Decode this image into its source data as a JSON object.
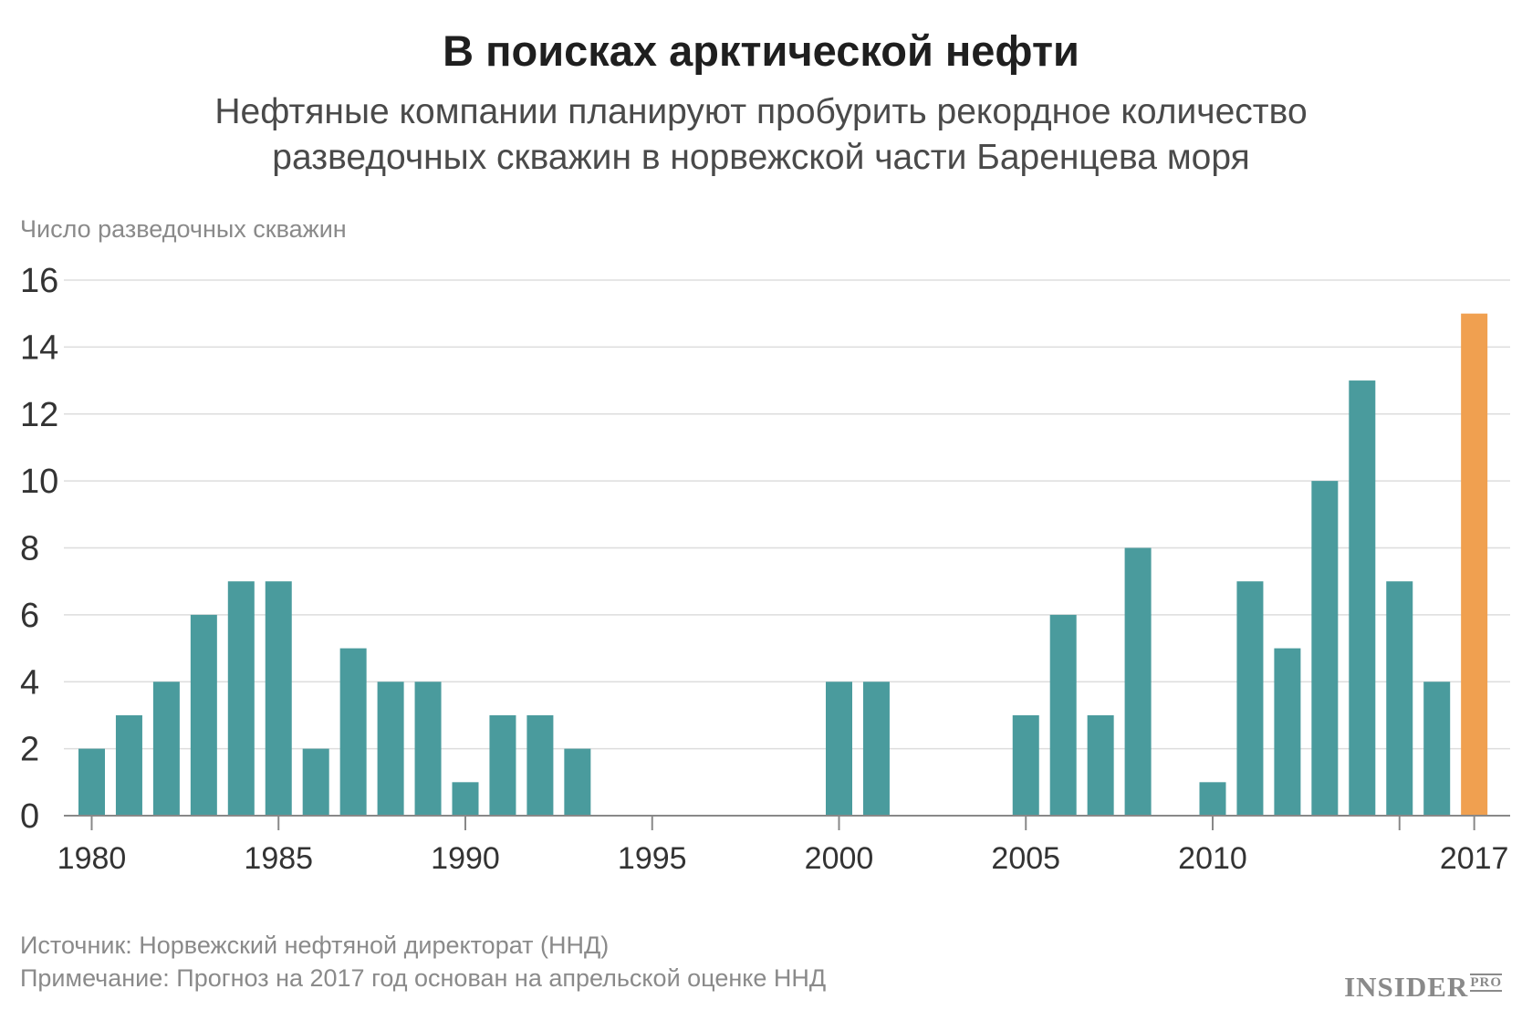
{
  "title": "В поисках арктической нефти",
  "subtitle_line1": "Нефтяные компании планируют пробурить рекордное количество",
  "subtitle_line2": "разведочных скважин в норвежской части Баренцева моря",
  "source": "Источник: Норвежский нефтяной директорат (ННД)",
  "note": "Примечание: Прогноз на 2017 год основан на апрельской оценке ННД",
  "logo": "INSIDER",
  "logo_suffix": "PRO",
  "colors": {
    "bar": "#4a9b9d",
    "highlight": "#f0a050",
    "grid": "#dddddd",
    "axis": "#888888"
  },
  "chart_data": {
    "type": "bar",
    "ylabel": "Число разведочных скважин",
    "xlabel": "",
    "ylim": [
      0,
      16
    ],
    "y_ticks": [
      "0",
      "2",
      "4",
      "6",
      "8",
      "10",
      "12",
      "14",
      "16"
    ],
    "x_ticks": [
      "1980",
      "1985",
      "1990",
      "1995",
      "2000",
      "2005",
      "2010",
      "2017"
    ],
    "grid": true,
    "categories": [
      1980,
      1981,
      1982,
      1983,
      1984,
      1985,
      1986,
      1987,
      1988,
      1989,
      1990,
      1991,
      1992,
      1993,
      1994,
      1995,
      1996,
      1997,
      1998,
      1999,
      2000,
      2001,
      2002,
      2003,
      2004,
      2005,
      2006,
      2007,
      2008,
      2009,
      2010,
      2011,
      2012,
      2013,
      2014,
      2015,
      2016,
      2017
    ],
    "values": [
      2,
      3,
      4,
      6,
      7,
      7,
      2,
      5,
      4,
      4,
      1,
      3,
      3,
      2,
      0,
      0,
      0,
      0,
      0,
      0,
      4,
      4,
      0,
      0,
      0,
      3,
      6,
      3,
      8,
      0,
      1,
      7,
      5,
      10,
      13,
      7,
      4,
      15
    ],
    "highlight": [
      2017
    ]
  }
}
